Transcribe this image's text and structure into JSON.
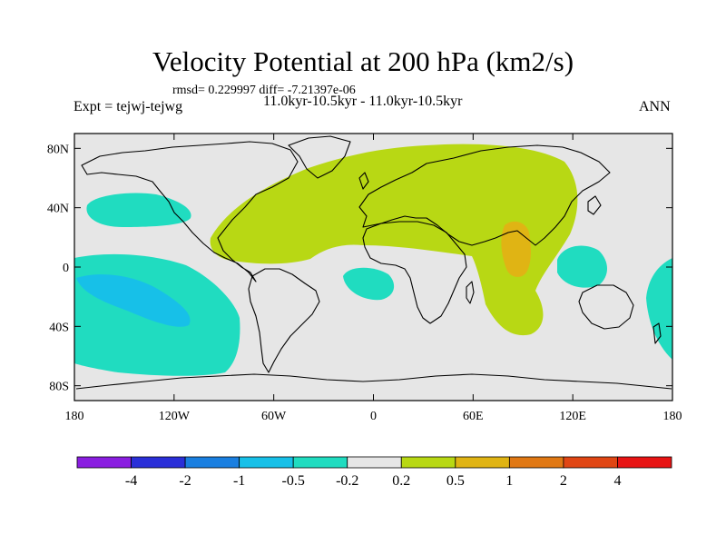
{
  "chart_data": {
    "type": "heatmap",
    "title": "Velocity Potential at 200 hPa (km2/s)",
    "subtitle_stats": "rmsd= 0.229997  diff= -7.21397e-06",
    "subtitle_period": "11.0kyr-10.5kyr - 11.0kyr-10.5kyr",
    "left_label": "Expt = tejwj-tejwg",
    "right_label": "ANN",
    "x_ticks": [
      "180",
      "120W",
      "60W",
      "0",
      "60E",
      "120E",
      "180"
    ],
    "y_ticks": [
      "80N",
      "40N",
      "0",
      "40S",
      "80S"
    ],
    "xlim": [
      -180,
      180
    ],
    "ylim": [
      -90,
      90
    ],
    "colorbar": {
      "levels": [
        "-4",
        "-2",
        "-1",
        "-0.5",
        "-0.2",
        "0.2",
        "0.5",
        "1",
        "2",
        "4"
      ],
      "colors": [
        "#8a1ee0",
        "#2a2fd8",
        "#1a7fe0",
        "#17c0e8",
        "#20dcc0",
        "#e6e6e6",
        "#b8d814",
        "#e0b414",
        "#e07814",
        "#e04614",
        "#e81414"
      ]
    },
    "fields": [
      {
        "name": "eastern-hemisphere-positive",
        "level": "0.2 to 0.5",
        "color": "#b8d814"
      },
      {
        "name": "indian-monsoon-maximum",
        "level": "0.5 to 1",
        "color": "#e0b414"
      },
      {
        "name": "north-pacific-negative",
        "level": "-0.5 to -0.2",
        "color": "#20dcc0"
      },
      {
        "name": "south-pacific-negative",
        "level": "-0.5 to -0.2",
        "color": "#20dcc0"
      },
      {
        "name": "south-pacific-core",
        "level": "-1 to -0.5",
        "color": "#17c0e8"
      },
      {
        "name": "south-atlantic-negative",
        "level": "-0.5 to -0.2",
        "color": "#20dcc0"
      },
      {
        "name": "maritime-continent-negative",
        "level": "-0.5 to -0.2",
        "color": "#20dcc0"
      },
      {
        "name": "west-pacific-edge-negative",
        "level": "-0.5 to -0.2",
        "color": "#20dcc0"
      }
    ]
  }
}
